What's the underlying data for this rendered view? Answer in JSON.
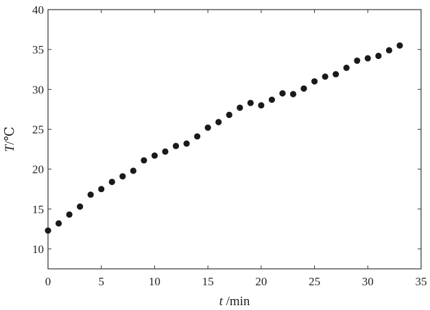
{
  "chart_data": {
    "type": "scatter",
    "title": "",
    "xlabel": {
      "var": "t",
      "unit": " /min"
    },
    "ylabel": {
      "var": "T",
      "unit": "/℃"
    },
    "xlim": [
      0,
      35
    ],
    "ylim": [
      7.5,
      40
    ],
    "xticks": [
      0,
      5,
      10,
      15,
      20,
      25,
      30,
      35
    ],
    "yticks": [
      10,
      15,
      20,
      25,
      30,
      35,
      40
    ],
    "grid": false,
    "legend": "none",
    "marker_color": "#1a1a1a",
    "series": [
      {
        "x": [
          0,
          1,
          2,
          3,
          4,
          5,
          6,
          7,
          8,
          9,
          10,
          11,
          12,
          13,
          14,
          15,
          16,
          17,
          18,
          19,
          20,
          21,
          22,
          23,
          24,
          25,
          26,
          27,
          28,
          29,
          30,
          31,
          32,
          33
        ],
        "y": [
          12.3,
          13.2,
          14.3,
          15.3,
          16.8,
          17.5,
          18.4,
          19.1,
          19.8,
          21.1,
          21.7,
          22.2,
          22.9,
          23.2,
          24.1,
          25.2,
          25.9,
          26.8,
          27.7,
          28.3,
          28.0,
          28.7,
          29.5,
          29.4,
          30.1,
          31.0,
          31.6,
          31.9,
          32.7,
          33.6,
          33.9,
          34.2,
          34.9,
          35.5
        ]
      }
    ]
  }
}
